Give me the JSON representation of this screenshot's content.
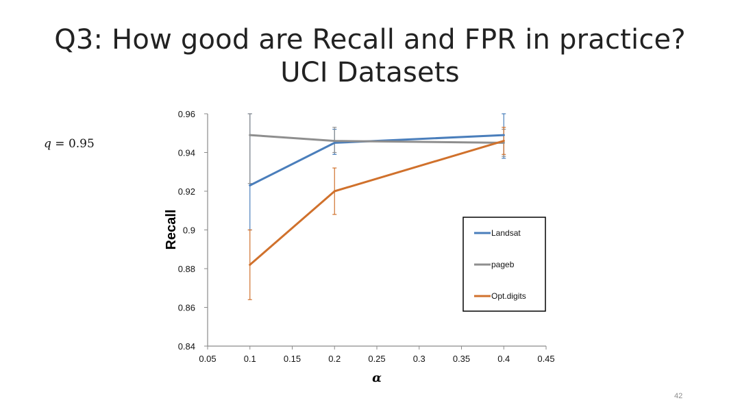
{
  "slide": {
    "title_line1": "Q3: How good are Recall and FPR in practice?",
    "title_line2": "UCI Datasets",
    "param_symbol": "q",
    "param_rest": " = 0.95",
    "page_number": "42"
  },
  "chart_data": {
    "type": "line",
    "xlabel": "α",
    "ylabel": "Recall",
    "xlim": [
      0.05,
      0.45
    ],
    "ylim": [
      0.84,
      0.96
    ],
    "x_ticks": [
      "0.05",
      "0.1",
      "0.15",
      "0.2",
      "0.25",
      "0.3",
      "0.35",
      "0.4",
      "0.45"
    ],
    "y_ticks": [
      "0.84",
      "0.86",
      "0.88",
      "0.9",
      "0.92",
      "0.94",
      "0.96"
    ],
    "grid": false,
    "legend_position": "right",
    "x": [
      0.1,
      0.2,
      0.4
    ],
    "series": [
      {
        "name": "Landsat",
        "color": "#4a7ebb",
        "values": [
          0.923,
          0.945,
          0.949
        ],
        "err_low": [
          0.9,
          0.939,
          0.937
        ],
        "err_high": [
          0.96,
          0.952,
          0.96
        ]
      },
      {
        "name": "pageb",
        "color": "#8e8e8e",
        "values": [
          0.949,
          0.946,
          0.945
        ],
        "err_low": [
          0.924,
          0.94,
          0.938
        ],
        "err_high": [
          0.96,
          0.953,
          0.952
        ]
      },
      {
        "name": "Opt.digits",
        "color": "#d0712c",
        "values": [
          0.882,
          0.92,
          0.946
        ],
        "err_low": [
          0.864,
          0.908,
          0.939
        ],
        "err_high": [
          0.9,
          0.932,
          0.953
        ]
      }
    ]
  }
}
